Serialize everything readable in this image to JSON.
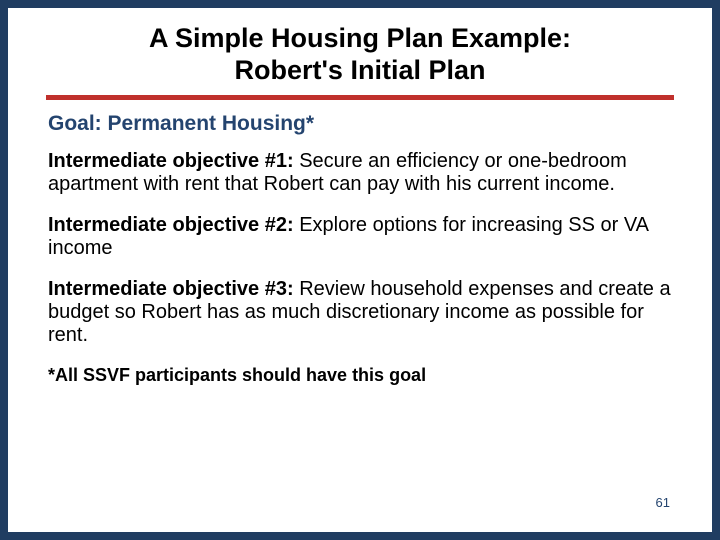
{
  "colors": {
    "slide_background": "#203d61",
    "content_background": "#ffffff",
    "title_text": "#000000",
    "goal_text": "#24446f",
    "body_text": "#000000",
    "divider_color": "#c0302c",
    "page_number_color": "#24446f"
  },
  "typography": {
    "title_fontsize": 27,
    "goal_fontsize": 21,
    "body_fontsize": 20,
    "footnote_fontsize": 18,
    "page_number_fontsize": 13
  },
  "layout": {
    "divider_height": 5
  },
  "title": {
    "line1": "A Simple Housing Plan Example:",
    "line2": "Robert's Initial Plan"
  },
  "goal": "Goal:  Permanent Housing*",
  "objectives": [
    {
      "label": "Intermediate objective #1:",
      "text": "  Secure an efficiency or one-bedroom apartment with rent that Robert can pay with his current income."
    },
    {
      "label": "Intermediate objective #2:",
      "text": "  Explore options for increasing SS or VA income"
    },
    {
      "label": "Intermediate objective #3:",
      "text": "  Review household expenses and create a budget so Robert has as much discretionary income as possible for rent."
    }
  ],
  "footnote": "*All SSVF participants should have this goal",
  "page_number": "61"
}
